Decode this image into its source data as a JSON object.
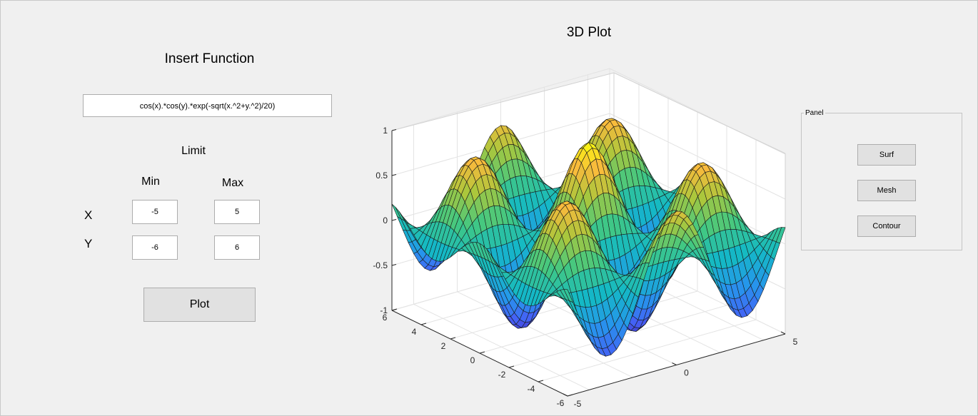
{
  "left": {
    "title": "Insert Function",
    "function_value": "cos(x).*cos(y).*exp(-sqrt(x.^2+y.^2)/20)",
    "limit_label": "Limit",
    "min_label": "Min",
    "max_label": "Max",
    "x_label": "X",
    "y_label": "Y",
    "x_min": "-5",
    "x_max": "5",
    "y_min": "-6",
    "y_max": "6",
    "plot_button": "Plot"
  },
  "plot": {
    "title": "3D Plot",
    "z_ticks": [
      "1",
      "0.5",
      "0",
      "-0.5",
      "-1"
    ],
    "y_ticks": [
      "6",
      "4",
      "2",
      "0",
      "-2",
      "-4",
      "-6"
    ],
    "x_ticks": [
      "-5",
      "0",
      "5"
    ]
  },
  "panel": {
    "title": "Panel",
    "buttons": [
      "Surf",
      "Mesh",
      "Contour"
    ]
  },
  "chart_data": {
    "type": "surface",
    "title": "3D Plot",
    "function": "cos(x).*cos(y).*exp(-sqrt(x.^2+y.^2)/20)",
    "xlim": [
      -5,
      5
    ],
    "ylim": [
      -6,
      6
    ],
    "zlim": [
      -1,
      1
    ],
    "grid": true,
    "colormap": "parula"
  }
}
